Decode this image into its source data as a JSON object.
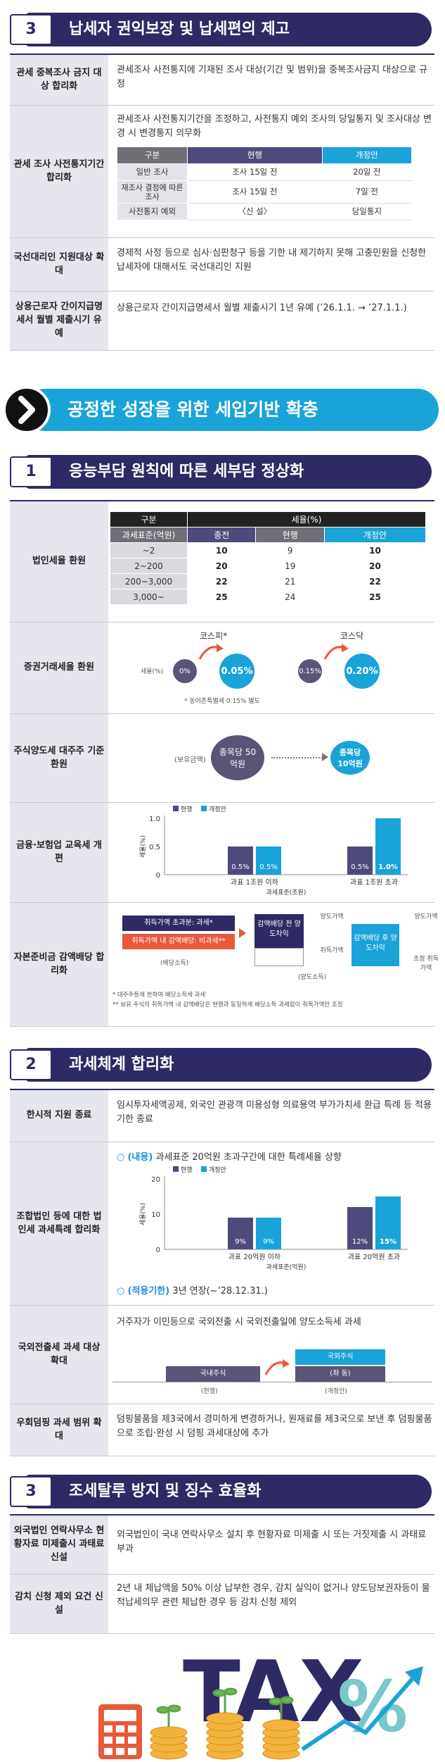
{
  "s3a": {
    "num": "3",
    "title": "납세자 권익보장 및 납세편의 제고",
    "r1": {
      "label": "관세 중복조사 금지 대상 합리화",
      "text": "관세조사 사전통지에 기재된 조사 대상(기간 및 범위)을 중복조사금지 대상으로 규정"
    },
    "r2": {
      "label": "관세 조사 사전통지기간 합리화",
      "text": "관세조사 사전통지기간을 조정하고, 사전통지 예외 조사의 당일통지 및 조사대상 변경 시 변경통지 의무화",
      "table": {
        "h": [
          "구분",
          "현행",
          "개정안"
        ],
        "rows": [
          [
            "일반 조사",
            "조사 15일 전",
            "20일 전"
          ],
          [
            "재조사 결정에 따른 조사",
            "조사 15일 전",
            "7일 전"
          ],
          [
            "사전통지 예외",
            "〈신 설〉",
            "당일통지"
          ]
        ]
      }
    },
    "r3": {
      "label": "국선대리인 지원대상 확대",
      "text": "경제적 사정 등으로 심사·심판청구 등을 기한 내 제기하지 못해 고충민원을 신청한 납세자에 대해서도 국선대리인 지원"
    },
    "r4": {
      "label": "상용근로자 간이지급명세서 월별 제출시기 유예",
      "text": "상용근로자 간이지급명세서 월별 제출시기 1년 유예 (’26.1.1. → ’27.1.1.)"
    }
  },
  "banner": {
    "title": "공정한 성장을 위한 세입기반 확충"
  },
  "s1": {
    "num": "1",
    "title": "응능부담 원칙에 따른 세부담 정상화",
    "r1": {
      "label": "법인세율 환원",
      "table": {
        "h_div": "구분",
        "h_rate": "세율(%)",
        "h_base": "과세표준(억원)",
        "h_prev": "종전",
        "h_cur": "현행",
        "h_new": "개정안",
        "rows": [
          [
            "~2",
            "10",
            "9",
            "10"
          ],
          [
            "2~200",
            "20",
            "19",
            "20"
          ],
          [
            "200~3,000",
            "22",
            "21",
            "22"
          ],
          [
            "3,000~",
            "25",
            "24",
            "25"
          ]
        ]
      }
    },
    "r2": {
      "label": "증권거래세율 환원",
      "kospi": "코스피*",
      "kosdaq": "코스닥",
      "rate_label": "세율(%)",
      "kospi_cur": "0%",
      "kospi_new": "0.05%",
      "kosdaq_cur": "0.15%",
      "kosdaq_new": "0.20%",
      "note": "* 농어촌특별세 0.15% 별도"
    },
    "r3": {
      "label": "주식양도세 대주주 기준 환원",
      "holding": "(보유금액)",
      "cur": "종목당 50억원",
      "new": "종목당 10억원"
    },
    "r4": {
      "label": "금융·보험업 교육세 개편",
      "legend_cur": "현행",
      "legend_new": "개정안",
      "ylabel": "세율(%)",
      "xlabel": "과세표준(조원)"
    },
    "r5": {
      "label": "자본준비금 감액배당 합리화",
      "box1": "취득가액 초과분: 과세*",
      "box2": "취득가액 내 감액배당: 비과세**",
      "left_cap": "(배당소득)",
      "mid1": "감액배당 전 양도차익",
      "mid2": "감액배당 후 양도차익",
      "right_cap": "(양도소득)",
      "a1": "양도가액",
      "a2": "취득가액",
      "a3": "양도가액",
      "a4": "조정 취득가액",
      "note1": "* 대주주등에 한하여 배당소득세 과세",
      "note2": "** 보유 주식의 취득가액 내 감액배당은 현행과 동일하게 배당소득 과세없이 취득가액만 조정"
    }
  },
  "chart_data": [
    {
      "type": "bar",
      "categories": [
        "과표 1조원 이하",
        "과표 1조원 초과"
      ],
      "series": [
        {
          "name": "현행",
          "values": [
            0.5,
            0.5
          ]
        },
        {
          "name": "개정안",
          "values": [
            0.5,
            1.0
          ]
        }
      ],
      "ylabel": "세율(%)",
      "xlabel": "과세표준(조원)",
      "ylim": [
        0,
        1.0
      ],
      "yticks": [
        "0",
        "0.5",
        "1.0"
      ],
      "labels": [
        [
          "0.5%",
          "0.5%"
        ],
        [
          "0.5%",
          "1.0%"
        ]
      ]
    },
    {
      "type": "bar",
      "categories": [
        "과표 20억원 이하",
        "과표 20억원 초과"
      ],
      "series": [
        {
          "name": "현행",
          "values": [
            9,
            12
          ]
        },
        {
          "name": "개정안",
          "values": [
            9,
            15
          ]
        }
      ],
      "ylabel": "세율(%)",
      "xlabel": "과세표준(억원)",
      "ylim": [
        0,
        20
      ],
      "yticks": [
        "0",
        "10",
        "20"
      ],
      "labels": [
        [
          "9%",
          "9%"
        ],
        [
          "12%",
          "15%"
        ]
      ]
    }
  ],
  "s2": {
    "num": "2",
    "title": "과세체계 합리화",
    "r1": {
      "label": "한시적 지원 종료",
      "text": "임시투자세액공제, 외국인 관광객 미용성형 의료용역 부가가치세 환급 특례 등 적용기한 종료"
    },
    "r2": {
      "label": "조합법인 등에 대한 법인세 과세특례 합리화",
      "content_tag": "(내용)",
      "content": "과세표준 20억원 초과구간에 대한 특례세율 상향",
      "legend_cur": "현행",
      "legend_new": "개정안",
      "ylabel": "세율(%)",
      "xlabel": "과세표준(억원)",
      "period_tag": "(적용기한)",
      "period": "3년 연장(~’28.12.31.)"
    },
    "r3": {
      "label": "국외전출세 과세 대상 확대",
      "text": "거주자가 이민등으로 국외전출 시 국외전출일에 양도소득세 과세",
      "d_cur": "국내주식",
      "d_new1": "국외주식",
      "d_new2": "(좌 동)",
      "cap_cur": "(현행)",
      "cap_new": "(개정안)"
    },
    "r4": {
      "label": "우회덤핑 과세 범위 확대",
      "text": "덤핑물품을 제3국에서 경미하게 변경하거나, 원재료를 제3국으로 보낸 후 덤핑물품으로 조립·완성 시 덤핑 과세대상에 추가"
    }
  },
  "s3b": {
    "num": "3",
    "title": "조세탈루 방지 및 징수 효율화",
    "r1": {
      "label": "외국법인 연락사무소 현황자료 미제출시 과태료 신설",
      "text": "외국법인이 국내 연락사무소 설치 후 현황자료 미제출 시 또는 거짓제출 시 과태료 부과"
    },
    "r2": {
      "label": "감치 신청 제외 요건 신설",
      "text": "2년 내 체납액을 50% 이상 납부한 경우, 감치 실익이 없거나 양도담보권자등이 물적납세의무 관련 체납한 경우 등 감치 신청 제외"
    }
  },
  "illustration": {
    "word": "TAX",
    "percent": "%"
  }
}
